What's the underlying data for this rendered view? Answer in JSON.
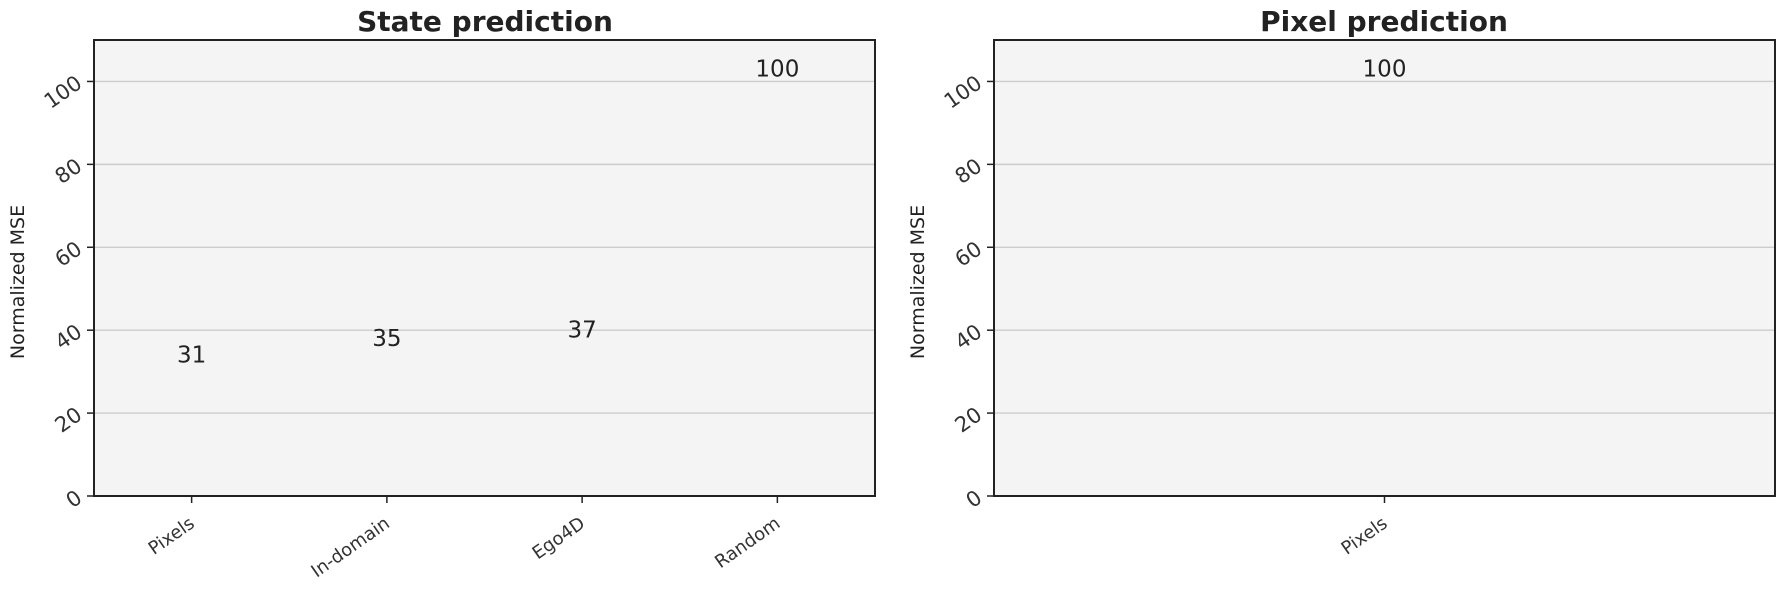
{
  "chart_data": [
    {
      "type": "bar",
      "title": "State prediction",
      "ylabel": "Normalized MSE",
      "xlabel": "",
      "categories": [
        "Pixels",
        "In-domain",
        "Ego4D",
        "Random"
      ],
      "values": [
        31,
        35,
        37,
        100
      ],
      "data_labels": [
        "31",
        "35",
        "37",
        "100"
      ],
      "colors": [
        "#5f9e6e",
        "#857aab",
        "#cf95bf",
        "#c0b17d"
      ],
      "yticks": [
        0,
        20,
        40,
        60,
        80,
        100
      ],
      "ytick_labels": [
        "0",
        "20",
        "40",
        "60",
        "80",
        "100"
      ],
      "ylim": [
        0,
        110
      ],
      "grid": true
    },
    {
      "type": "bar",
      "title": "Pixel prediction",
      "ylabel": "Normalized MSE",
      "xlabel": "",
      "categories": [
        "Pixels"
      ],
      "values": [
        100
      ],
      "data_labels": [
        "100"
      ],
      "colors": [
        "#5f9e6e"
      ],
      "yticks": [
        0,
        20,
        40,
        60,
        80,
        100
      ],
      "ytick_labels": [
        "0",
        "20",
        "40",
        "60",
        "80",
        "100"
      ],
      "ylim": [
        0,
        110
      ],
      "grid": true
    }
  ]
}
